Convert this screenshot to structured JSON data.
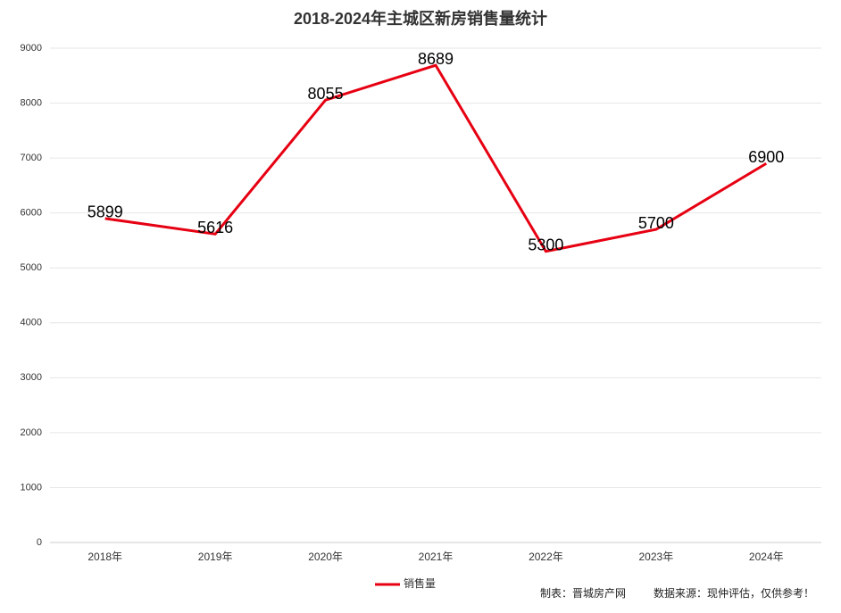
{
  "chart_data": {
    "type": "line",
    "title": "2018-2024年主城区新房销售量统计",
    "categories": [
      "2018年",
      "2019年",
      "2020年",
      "2021年",
      "2022年",
      "2023年",
      "2024年"
    ],
    "series": [
      {
        "name": "销售量",
        "color": "#e60012",
        "values": [
          5899,
          5616,
          8055,
          8689,
          5300,
          5700,
          6900
        ]
      }
    ],
    "ylim": [
      0,
      9000
    ],
    "yticks": [
      0,
      1000,
      2000,
      3000,
      4000,
      5000,
      6000,
      7000,
      8000,
      9000
    ],
    "grid": true,
    "legend": "bottom",
    "notes": [
      "制表：晋城房产网",
      "数据来源：现仲评估，仅供参考！"
    ]
  }
}
